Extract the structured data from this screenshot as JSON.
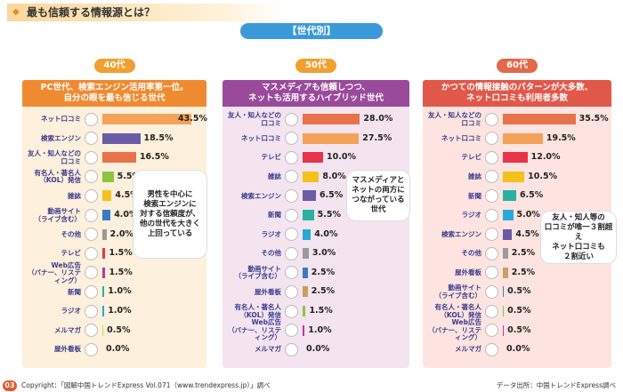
{
  "header": {
    "title": "最も信頼する情報源とは？",
    "section": "【世代別】"
  },
  "chart_data": [
    {
      "type": "bar",
      "subtitle": "40代",
      "title": "PC世代、検索エンジン活用率第一位。\n自分の眼を最も信じる世代",
      "annotation": "男性を中心に\n検索エンジンに\n対する信頼度が、\n他の世代を大きく\n上回っている",
      "categories": [
        "ネット口コミ",
        "検索エンジン",
        "友人・知人などの\n口コミ",
        "有名人・著名人\n（KOL）発信",
        "雑誌",
        "動画サイト\n（ライブ含む）",
        "その他",
        "テレビ",
        "Web広告\n（バナー、リスティング）",
        "新聞",
        "ラジオ",
        "メルマガ",
        "屋外看板"
      ],
      "values": [
        43.5,
        18.5,
        16.5,
        5.5,
        4.5,
        4.0,
        2.0,
        1.5,
        1.5,
        1.0,
        1.0,
        0.5,
        0.0
      ],
      "value_labels": [
        "43.5%",
        "18.5%",
        "16.5%",
        "5.5%",
        "4.5%",
        "4.0%",
        "2.0%",
        "1.5%",
        "1.5%",
        "1.0%",
        "1.0%",
        "0.5%",
        "0.0%"
      ],
      "colors": [
        "#f4a25a",
        "#6a5aa8",
        "#e8734a",
        "#8cc43e",
        "#f2c21a",
        "#3a7bc8",
        "#9a9a9a",
        "#e8344a",
        "#c0379a",
        "#2ab0a0",
        "#2aa8d8",
        "#b8d86a",
        "#c8a060"
      ]
    },
    {
      "type": "bar",
      "subtitle": "50代",
      "title": "マスメディアも信頼しつつ、\nネットも活用するハイブリッド世代",
      "annotation": "マスメディアと\nネットの両方に\nつながっている\n世代",
      "categories": [
        "友人・知人などの\n口コミ",
        "ネット口コミ",
        "テレビ",
        "雑誌",
        "検索エンジン",
        "新聞",
        "ラジオ",
        "その他",
        "動画サイト\n（ライブ含む）",
        "屋外看板",
        "有名人・著名人\n（KOL）発信",
        "Web広告\n（バナー、リスティング）",
        "メルマガ"
      ],
      "values": [
        28.0,
        27.5,
        10.0,
        8.0,
        6.5,
        5.5,
        4.0,
        3.0,
        2.5,
        2.5,
        1.5,
        1.0,
        0.0
      ],
      "value_labels": [
        "28.0%",
        "27.5%",
        "10.0%",
        "8.0%",
        "6.5%",
        "5.5%",
        "4.0%",
        "3.0%",
        "2.5%",
        "2.5%",
        "1.5%",
        "1.0%",
        "0.0%"
      ],
      "colors": [
        "#e8734a",
        "#f4a25a",
        "#e8344a",
        "#f2c21a",
        "#6a5aa8",
        "#2ab0a0",
        "#2aa8d8",
        "#9a9a9a",
        "#3a7bc8",
        "#c8a060",
        "#8cc43e",
        "#c0379a",
        "#b8d86a"
      ]
    },
    {
      "type": "bar",
      "subtitle": "60代",
      "title": "かつての情報接触のパターンが大多数、\nネット口コミも利用者多数",
      "annotation": "友人・知人等の\n口コミが唯一３割超え\nネット口コミも\n２割近い",
      "categories": [
        "友人・知人などの\n口コミ",
        "ネット口コミ",
        "テレビ",
        "雑誌",
        "新聞",
        "ラジオ",
        "検索エンジン",
        "その他",
        "屋外看板",
        "動画サイト\n（ライブ含む）",
        "有名人・著名人\n（KOL）発信",
        "Web広告\n（バナー、リスティング）",
        "メルマガ"
      ],
      "values": [
        35.5,
        19.5,
        12.0,
        10.5,
        6.5,
        5.0,
        4.5,
        2.5,
        2.5,
        0.5,
        0.5,
        0.5,
        0.0
      ],
      "value_labels": [
        "35.5%",
        "19.5%",
        "12.0%",
        "10.5%",
        "6.5%",
        "5.0%",
        "4.5%",
        "2.5%",
        "2.5%",
        "0.5%",
        "0.5%",
        "0.5%",
        "0.0%"
      ],
      "colors": [
        "#e8734a",
        "#f4a25a",
        "#e8344a",
        "#f2c21a",
        "#2ab0a0",
        "#2aa8d8",
        "#6a5aa8",
        "#9a9a9a",
        "#c8a060",
        "#3a7bc8",
        "#8cc43e",
        "#c0379a",
        "#b8d86a"
      ]
    }
  ],
  "footer": {
    "page": "03",
    "copyright": "Copyright：「図解中国トレンドExpress Vol.071（www.trendexpress.jp）」調べ",
    "source": "データ出所：中国トレンドExpress調べ"
  }
}
